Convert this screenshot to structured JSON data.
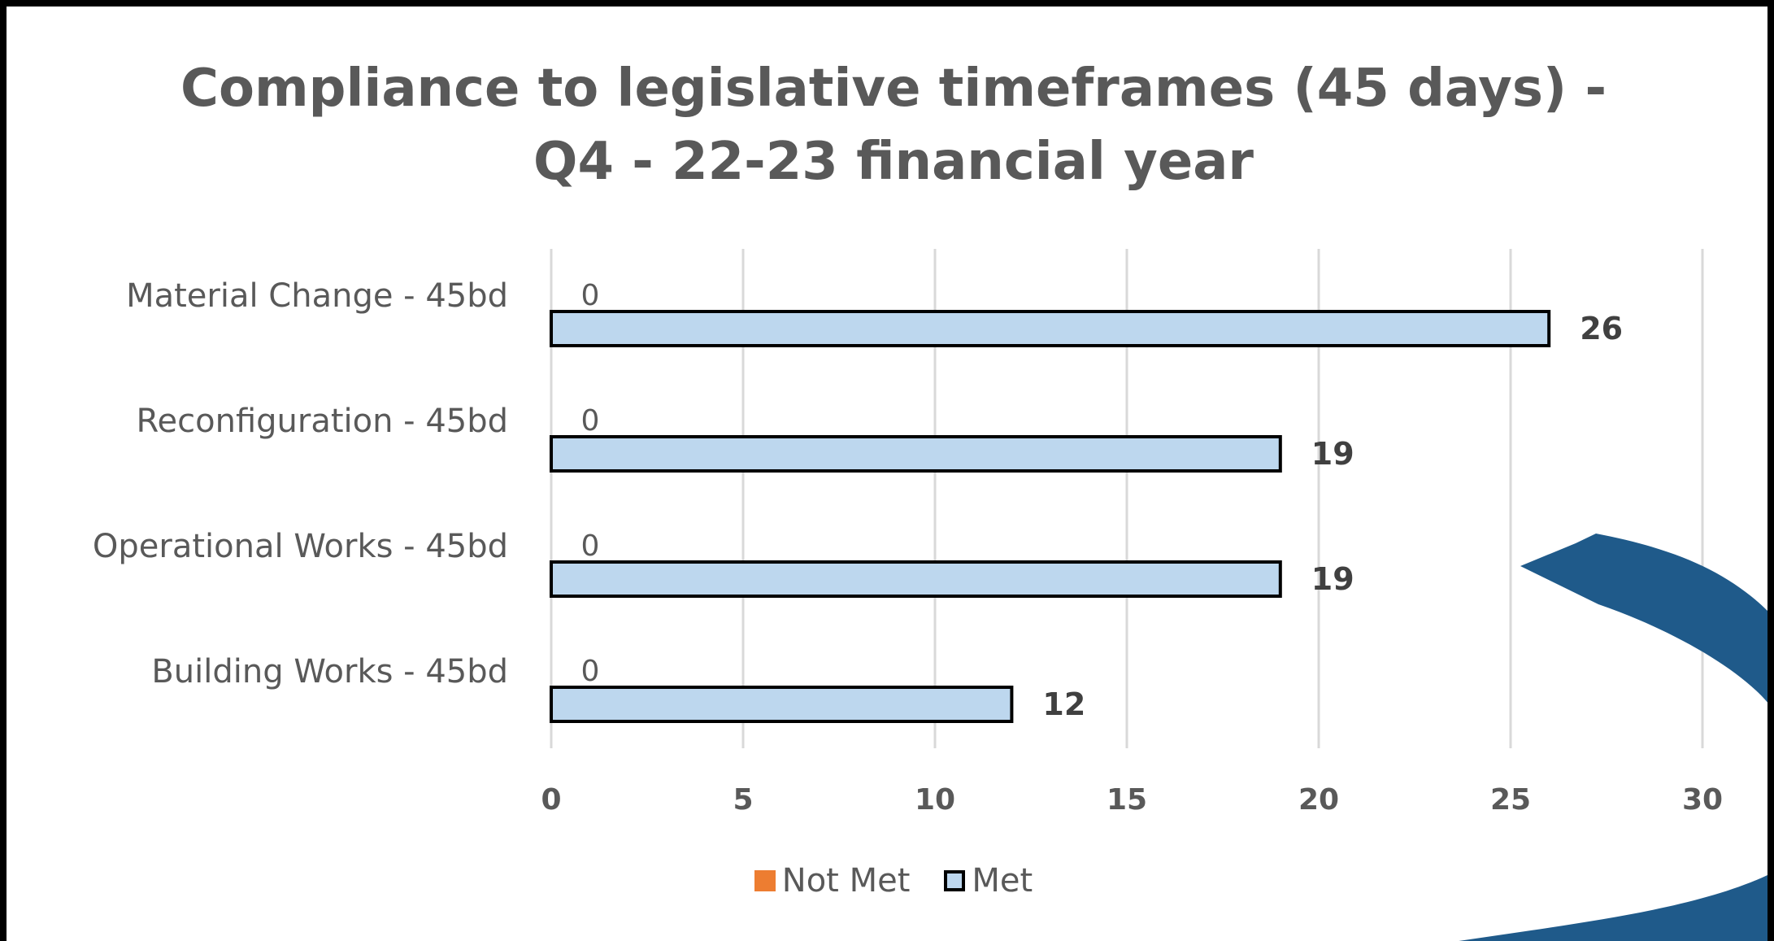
{
  "chart_data": {
    "type": "bar",
    "orientation": "horizontal",
    "title": [
      "Compliance to legislative timeframes (45 days) -",
      "Q4 - 22-23 financial year"
    ],
    "categories": [
      "Material Change - 45bd",
      "Reconfiguration - 45bd",
      "Operational Works - 45bd",
      "Building Works - 45bd"
    ],
    "series": [
      {
        "name": "Not Met",
        "values": [
          0,
          0,
          0,
          0
        ],
        "color": "#ED7D31"
      },
      {
        "name": "Met",
        "values": [
          26,
          19,
          19,
          12
        ],
        "color": "#BDD7EE",
        "outline": "#000000"
      }
    ],
    "xlim": [
      0,
      30
    ],
    "xticks": [
      0,
      5,
      10,
      15,
      20,
      25,
      30
    ],
    "grid": true,
    "legend": "bottom"
  },
  "colors": {
    "gridline": "#D9D9D9",
    "arrow": "#1F5A8A"
  }
}
